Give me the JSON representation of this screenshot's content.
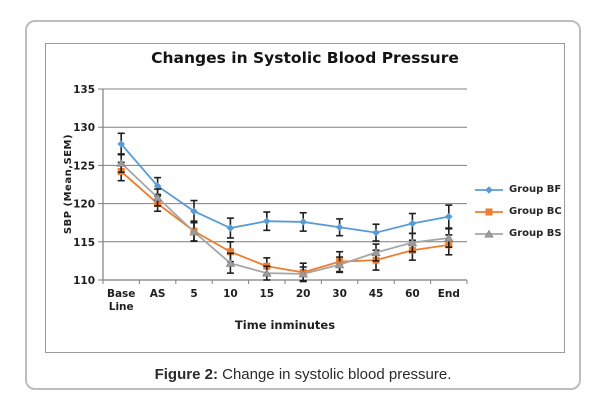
{
  "caption": {
    "prefix": "Figure 2:",
    "text": "Change in systolic blood pressure."
  },
  "chart_data": {
    "type": "line",
    "title": "Changes in Systolic Blood Pressure",
    "xlabel": "Time inminutes",
    "ylabel": "SBP (Mean,SEM)",
    "categories": [
      "Base Line",
      "AS",
      "5",
      "10",
      "15",
      "20",
      "30",
      "45",
      "60",
      "End"
    ],
    "ylim": [
      110,
      135
    ],
    "ytick_step": 5,
    "yticks": [
      110,
      115,
      120,
      125,
      130,
      135
    ],
    "grid": true,
    "legend_position": "right",
    "error_bars": true,
    "error_bar_color": "#1f1f1f",
    "gridline_color": "#7f7f7f",
    "series": [
      {
        "name": "Group BF",
        "marker": "diamond",
        "color": "#5B9BD5",
        "values": [
          127.8,
          122.3,
          119.0,
          116.8,
          117.7,
          117.6,
          116.9,
          116.2,
          117.4,
          118.3
        ],
        "error": [
          1.4,
          1.1,
          1.4,
          1.3,
          1.2,
          1.2,
          1.1,
          1.1,
          1.3,
          1.5
        ]
      },
      {
        "name": "Group BC",
        "marker": "square",
        "color": "#ED7D31",
        "values": [
          124.2,
          120.0,
          116.4,
          113.7,
          111.8,
          111.0,
          112.4,
          112.6,
          113.9,
          114.6
        ],
        "error": [
          1.2,
          1.0,
          1.3,
          1.3,
          1.1,
          1.2,
          1.3,
          1.3,
          1.3,
          1.3
        ]
      },
      {
        "name": "Group BS",
        "marker": "triangle",
        "color": "#A6A6A6",
        "values": [
          125.3,
          120.8,
          116.3,
          112.2,
          110.9,
          110.8,
          112.0,
          113.6,
          114.9,
          115.5
        ],
        "error": [
          1.2,
          1.1,
          1.2,
          1.3,
          0.9,
          0.9,
          1.0,
          1.1,
          1.2,
          1.2
        ]
      }
    ]
  }
}
